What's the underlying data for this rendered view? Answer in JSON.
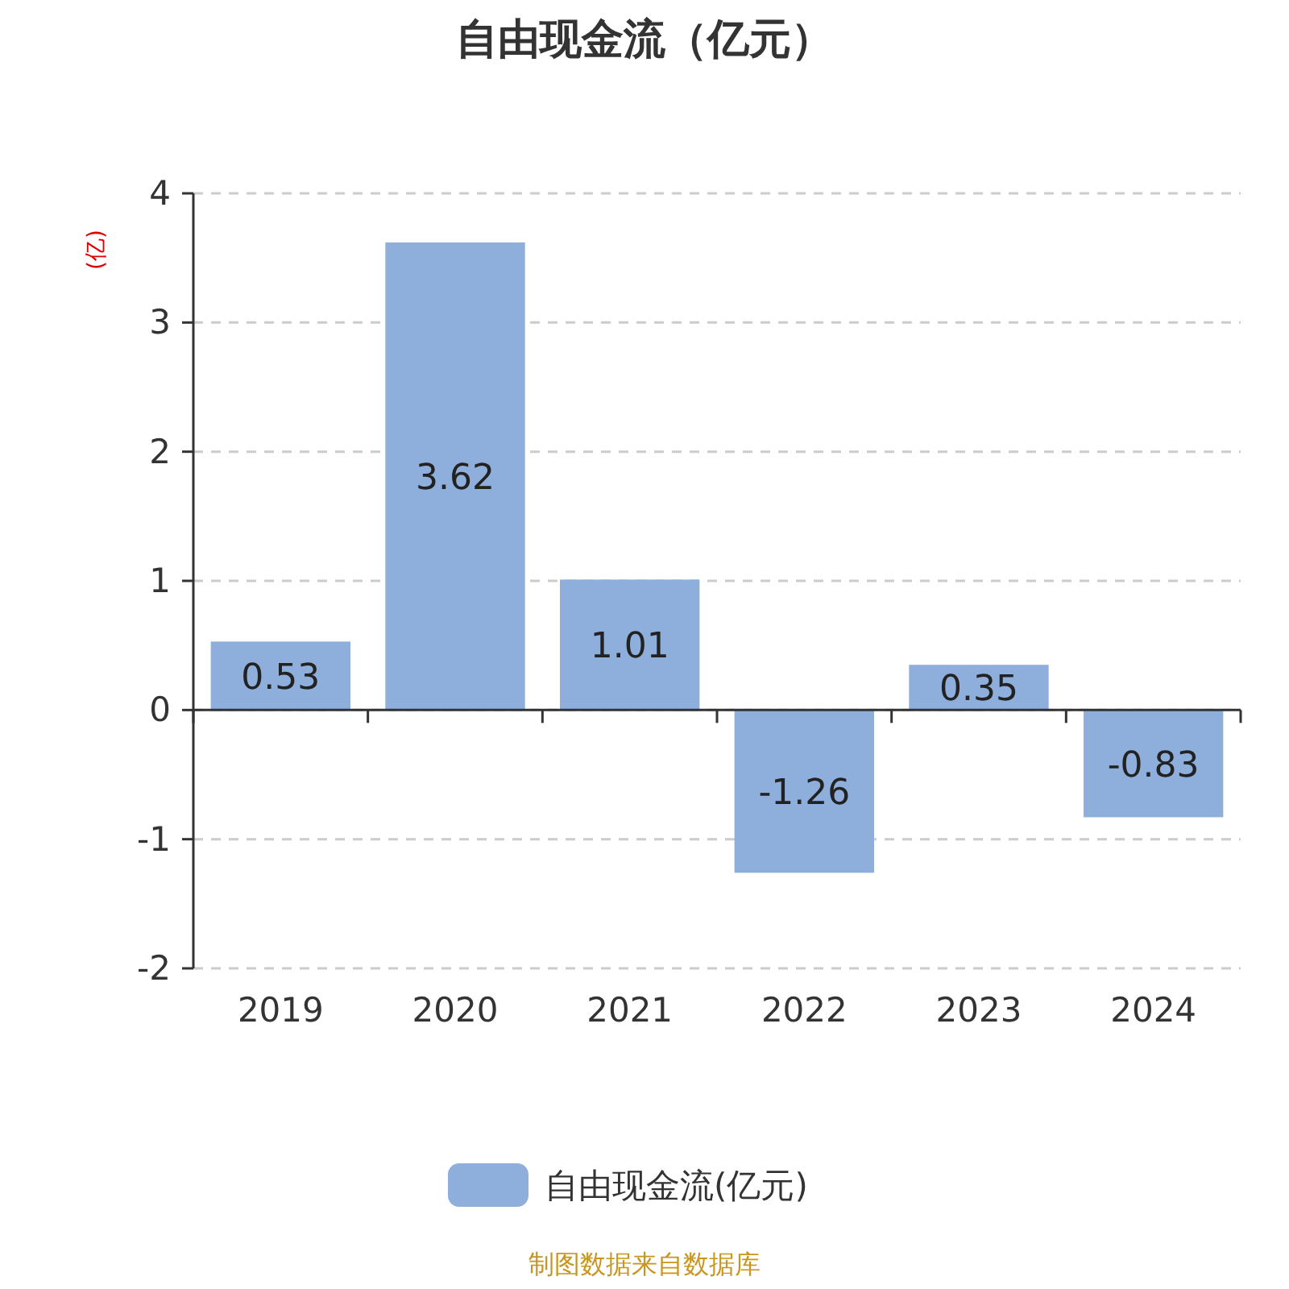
{
  "chart_data": {
    "type": "bar",
    "title": "自由现金流（亿元）",
    "ylabel": "(亿)",
    "categories": [
      "2019",
      "2020",
      "2021",
      "2022",
      "2023",
      "2024"
    ],
    "series": [
      {
        "name": "自由现金流(亿元)",
        "color": "#8eaedb",
        "values": [
          0.53,
          3.62,
          1.01,
          -1.26,
          0.35,
          -0.83
        ]
      }
    ],
    "ylim": [
      -2,
      4
    ],
    "yticks": [
      -2,
      -1,
      0,
      1,
      2,
      3,
      4
    ],
    "grid": "y",
    "legend": "bottom",
    "data_labels": true,
    "annotations": [
      "制图数据来自数据库"
    ]
  }
}
